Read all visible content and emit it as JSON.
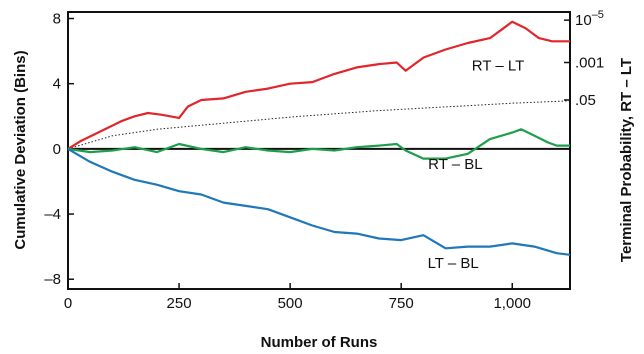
{
  "chart_data": {
    "type": "line",
    "title": "",
    "xlabel": "Number of Runs",
    "ylabel": "Cumulative Deviation (Bins)",
    "ylabel_right": "Terminal Probability, RT – LT",
    "xlim": [
      0,
      1130
    ],
    "ylim": [
      -8.6,
      8.4
    ],
    "x_ticks": [
      0,
      250,
      500,
      750,
      1000
    ],
    "x_tick_labels": [
      "0",
      "250",
      "500",
      "750",
      "1,000"
    ],
    "y_ticks": [
      8,
      4,
      0,
      -4,
      -8
    ],
    "y_tick_labels": [
      "8",
      "4",
      "0",
      "–4",
      "–8"
    ],
    "right_ticks": [
      {
        "y": 7.9,
        "label": "10",
        "sup": "–5"
      },
      {
        "y": 5.3,
        "label": ".001",
        "sup": ""
      },
      {
        "y": 3.0,
        "label": ".05",
        "sup": ""
      }
    ],
    "grid": false,
    "legend": "inline labels",
    "reference_curve": {
      "style": "dotted",
      "x": [
        0,
        100,
        200,
        300,
        400,
        500,
        600,
        700,
        800,
        900,
        1000,
        1130
      ],
      "y": [
        0,
        0.8,
        1.2,
        1.45,
        1.7,
        1.95,
        2.15,
        2.35,
        2.5,
        2.65,
        2.8,
        2.95
      ]
    },
    "series": [
      {
        "name": "RT – LT",
        "color": "#e0262b",
        "label_pos": [
          968,
          4.8
        ],
        "x": [
          0,
          30,
          60,
          90,
          120,
          150,
          180,
          210,
          250,
          270,
          300,
          350,
          400,
          450,
          500,
          550,
          600,
          650,
          700,
          740,
          760,
          800,
          850,
          900,
          950,
          980,
          1000,
          1030,
          1060,
          1090,
          1130
        ],
        "y": [
          0,
          0.5,
          0.9,
          1.3,
          1.7,
          2.0,
          2.2,
          2.1,
          1.9,
          2.6,
          3.0,
          3.1,
          3.5,
          3.7,
          4.0,
          4.1,
          4.6,
          5.0,
          5.2,
          5.3,
          4.8,
          5.6,
          6.1,
          6.5,
          6.8,
          7.4,
          7.8,
          7.4,
          6.8,
          6.6,
          6.6
        ]
      },
      {
        "name": "RT – BL",
        "color": "#1e9e4c",
        "label_pos": [
          872,
          -1.25
        ],
        "x": [
          0,
          50,
          100,
          150,
          200,
          250,
          300,
          350,
          400,
          450,
          500,
          550,
          600,
          650,
          700,
          740,
          760,
          800,
          850,
          900,
          950,
          1000,
          1020,
          1050,
          1080,
          1100,
          1130
        ],
        "y": [
          0,
          -0.2,
          -0.1,
          0.1,
          -0.2,
          0.3,
          0.0,
          -0.2,
          0.1,
          -0.1,
          -0.2,
          0.0,
          -0.1,
          0.1,
          0.2,
          0.3,
          -0.1,
          -0.6,
          -0.6,
          -0.3,
          0.6,
          1.0,
          1.2,
          0.8,
          0.4,
          0.2,
          0.2
        ]
      },
      {
        "name": "LT – BL",
        "color": "#1f78b8",
        "label_pos": [
          867,
          -7.3
        ],
        "x": [
          0,
          50,
          100,
          150,
          200,
          250,
          300,
          350,
          400,
          450,
          500,
          550,
          600,
          650,
          700,
          750,
          800,
          850,
          900,
          950,
          1000,
          1050,
          1100,
          1130
        ],
        "y": [
          0,
          -0.8,
          -1.4,
          -1.9,
          -2.2,
          -2.6,
          -2.8,
          -3.3,
          -3.5,
          -3.7,
          -4.2,
          -4.7,
          -5.1,
          -5.2,
          -5.5,
          -5.6,
          -5.3,
          -6.1,
          -6.0,
          -6.0,
          -5.8,
          -6.0,
          -6.4,
          -6.5
        ]
      }
    ]
  }
}
